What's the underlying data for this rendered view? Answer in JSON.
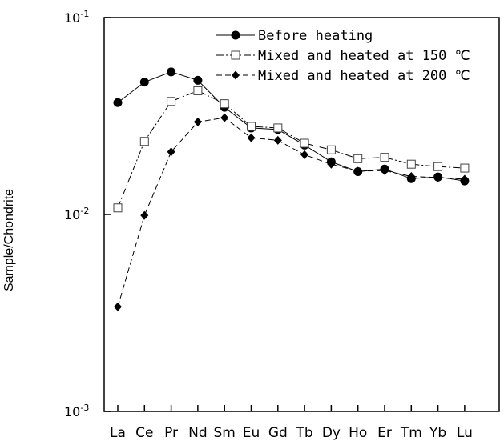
{
  "chart_data": {
    "type": "line",
    "title": "",
    "xlabel": "",
    "ylabel": "Sample/Chondrite",
    "yscale": "log",
    "ylim": [
      0.001,
      0.1
    ],
    "yticks": [
      {
        "value": 0.1,
        "base": "10",
        "exp": "-1"
      },
      {
        "value": 0.01,
        "base": "10",
        "exp": "-2"
      },
      {
        "value": 0.001,
        "base": "10",
        "exp": "-3"
      }
    ],
    "categories": [
      "La",
      "Ce",
      "Pr",
      "Nd",
      "Sm",
      "Eu",
      "Gd",
      "Tb",
      "Dy",
      "Ho",
      "Er",
      "Tm",
      "Yb",
      "Lu"
    ],
    "grid": false,
    "legend_position": "top-right",
    "series": [
      {
        "name": "Before heating",
        "marker": "circle-filled",
        "line": "solid",
        "color": "#000000",
        "values": [
          0.037,
          0.047,
          0.053,
          0.048,
          0.035,
          0.0275,
          0.027,
          0.0225,
          0.0185,
          0.0165,
          0.017,
          0.0152,
          0.0155,
          0.0148
        ]
      },
      {
        "name": "Mixed and heated at 150 ℃",
        "marker": "square-open",
        "line": "dashdot",
        "color": "#000000",
        "values": [
          0.0108,
          0.0235,
          0.0375,
          0.0425,
          0.0365,
          0.028,
          0.0275,
          0.023,
          0.0213,
          0.0192,
          0.0195,
          0.018,
          0.0175,
          0.0172
        ]
      },
      {
        "name": "Mixed and heated at 200 ℃",
        "marker": "diamond-filled",
        "line": "dashed",
        "color": "#000000",
        "values": [
          0.0034,
          0.0099,
          0.0208,
          0.0295,
          0.031,
          0.0245,
          0.0238,
          0.0201,
          0.018,
          0.0166,
          0.0167,
          0.0156,
          0.0154,
          0.0151
        ]
      }
    ]
  }
}
